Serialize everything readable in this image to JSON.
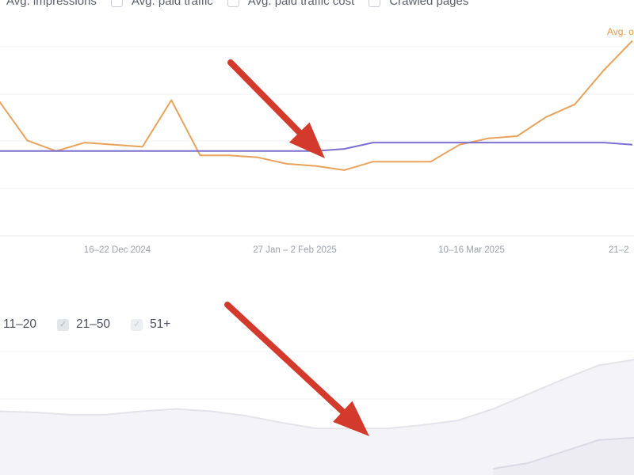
{
  "metric_toggles": [
    {
      "label": "Avg. impressions",
      "checked": false,
      "has_checkbox": false
    },
    {
      "label": "Avg. paid traffic",
      "checked": false
    },
    {
      "label": "Avg. paid traffic cost",
      "checked": false
    },
    {
      "label": "Crawled pages",
      "checked": false
    }
  ],
  "series_label": "Avg. o",
  "chart_data": [
    {
      "type": "line",
      "x_tick_labels": [
        "16–22 Dec 2024",
        "27 Jan – 2 Feb 2025",
        "10–16 Mar 2025",
        "21–2"
      ],
      "grid": true,
      "series": [
        {
          "color": "#e8a25a",
          "values": [
            64,
            45,
            40,
            44,
            43,
            42,
            64,
            38,
            38,
            37,
            34,
            33,
            31,
            35,
            35,
            35,
            43,
            46,
            47,
            56,
            62,
            78,
            92
          ]
        },
        {
          "color": "#7b6fd0",
          "values": [
            40,
            40,
            40,
            40,
            40,
            40,
            40,
            40,
            40,
            40,
            40,
            40,
            41,
            44,
            44,
            44,
            44,
            44,
            44,
            44,
            44,
            44,
            43
          ]
        }
      ]
    },
    {
      "type": "area",
      "grid": true,
      "series": [
        {
          "color": "#e6e6ef",
          "values": [
            50,
            49,
            47,
            47,
            50,
            52,
            50,
            46,
            40,
            35,
            35,
            35,
            38,
            42,
            52,
            65,
            78,
            90,
            95
          ]
        },
        {
          "color": "#d9dae3",
          "values": [
            0,
            0,
            0,
            0,
            0,
            0,
            0,
            0,
            0,
            0,
            0,
            0,
            0,
            0,
            0,
            5,
            15,
            25,
            27
          ]
        }
      ]
    }
  ],
  "position_filters": [
    {
      "label": "11–20",
      "checked": false,
      "has_checkbox": false
    },
    {
      "label": "21–50",
      "checked": true
    },
    {
      "label": "51+",
      "checked": true
    }
  ],
  "annotation_color": "#d43a2c"
}
